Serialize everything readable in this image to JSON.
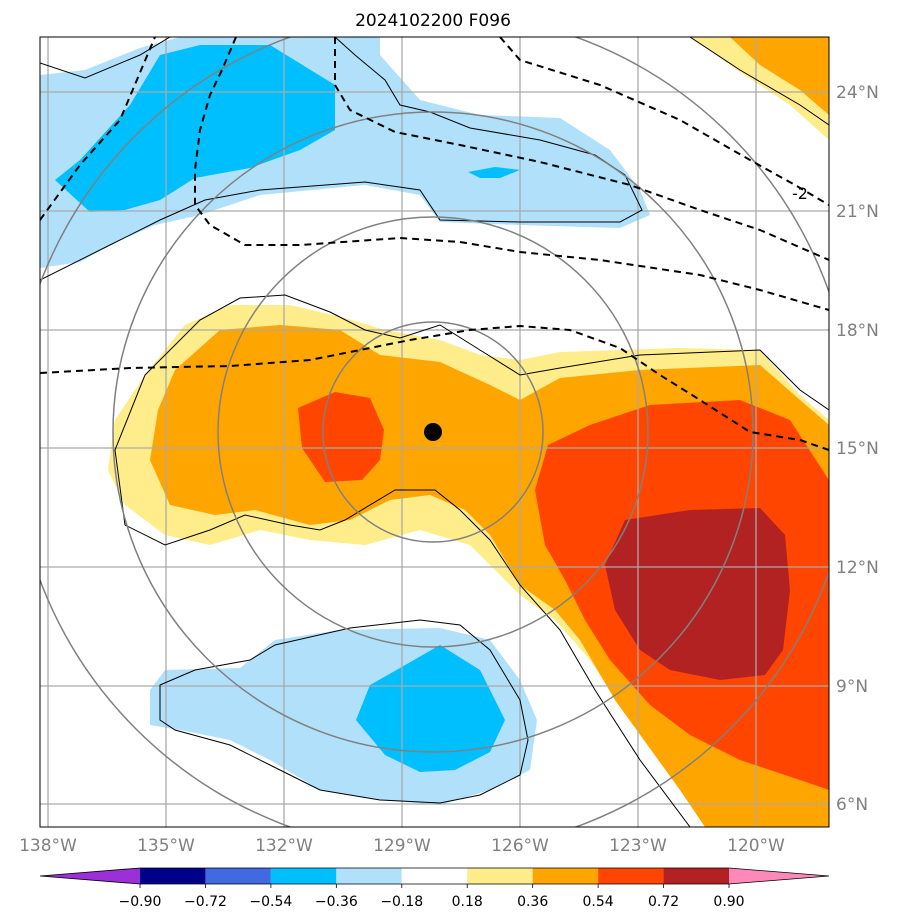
{
  "title": "2024102200 F096",
  "lat_labels": [
    "24°N",
    "21°N",
    "18°N",
    "15°N",
    "12°N",
    "9°N",
    "6°N"
  ],
  "lon_labels": [
    "138°W",
    "135°W",
    "132°W",
    "129°W",
    "126°W",
    "123°W",
    "120°W"
  ],
  "contour_label": "-2",
  "colorbar": {
    "ticks": [
      "−0.90",
      "−0.72",
      "−0.54",
      "−0.36",
      "−0.18",
      "0.18",
      "0.36",
      "0.54",
      "0.72",
      "0.90"
    ],
    "colors": [
      "#9b30d9",
      "#00008b",
      "#4169e1",
      "#00bfff",
      "#b0e0fa",
      "#ffffff",
      "#ffec8b",
      "#ffa500",
      "#ff4500",
      "#b22222",
      "#ff88bb"
    ]
  },
  "storm_center": {
    "lat": 15.4,
    "lon": -128.3
  },
  "colors": {
    "grid": "#aaaaaa",
    "rings": "#808080"
  }
}
